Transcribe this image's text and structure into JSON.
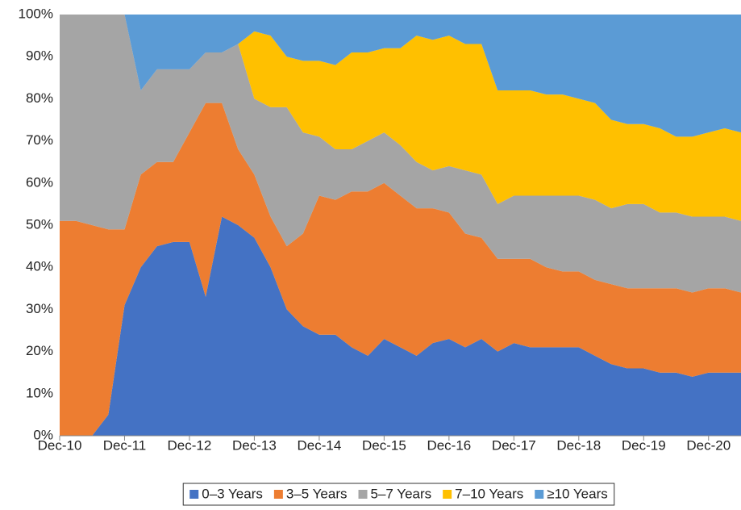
{
  "chart_data": {
    "type": "stacked_area",
    "categories": [
      "Dec-10",
      null,
      null,
      null,
      "Dec-11",
      null,
      null,
      null,
      "Dec-12",
      null,
      null,
      null,
      "Dec-13",
      null,
      null,
      null,
      "Dec-14",
      null,
      null,
      null,
      "Dec-15",
      null,
      null,
      null,
      "Dec-16",
      null,
      null,
      null,
      "Dec-17",
      null,
      null,
      null,
      "Dec-18",
      null,
      null,
      null,
      "Dec-19",
      null,
      null,
      null,
      "Dec-20",
      null,
      null
    ],
    "series": [
      {
        "name": "0–3 Years",
        "color": "#4472c4",
        "values": [
          0,
          0,
          0,
          5,
          31,
          40,
          45,
          46,
          46,
          33,
          52,
          50,
          47,
          40,
          30,
          26,
          24,
          24,
          21,
          19,
          23,
          21,
          19,
          22,
          23,
          21,
          23,
          20,
          22,
          21,
          21,
          21,
          21,
          19,
          17,
          16,
          16,
          15,
          15,
          14,
          15,
          15,
          15
        ]
      },
      {
        "name": "3–5 Years",
        "color": "#ed7d31",
        "values": [
          51,
          51,
          50,
          44,
          18,
          22,
          20,
          19,
          26,
          46,
          27,
          18,
          15,
          12,
          15,
          22,
          33,
          32,
          37,
          39,
          37,
          36,
          35,
          32,
          30,
          27,
          24,
          22,
          20,
          21,
          19,
          18,
          18,
          18,
          19,
          19,
          19,
          20,
          20,
          20,
          20,
          20,
          19
        ]
      },
      {
        "name": "5–7 Years",
        "color": "#a5a5a5",
        "values": [
          49,
          49,
          50,
          51,
          51,
          20,
          22,
          22,
          15,
          12,
          12,
          25,
          18,
          26,
          33,
          24,
          14,
          12,
          10,
          12,
          12,
          12,
          11,
          9,
          11,
          15,
          15,
          13,
          15,
          15,
          17,
          18,
          18,
          19,
          18,
          20,
          20,
          18,
          18,
          18,
          17,
          17,
          17
        ]
      },
      {
        "name": "7–10 Years",
        "color": "#ffc000",
        "values": [
          0,
          0,
          0,
          0,
          0,
          0,
          0,
          0,
          0,
          0,
          0,
          0,
          16,
          17,
          12,
          17,
          18,
          20,
          23,
          21,
          20,
          23,
          30,
          31,
          31,
          30,
          31,
          27,
          25,
          25,
          24,
          24,
          23,
          23,
          21,
          19,
          19,
          20,
          18,
          19,
          20,
          21,
          21
        ]
      },
      {
        "name": "≥10 Years",
        "color": "#5b9bd5",
        "values": [
          0,
          0,
          0,
          0,
          0,
          18,
          13,
          13,
          13,
          9,
          9,
          7,
          4,
          5,
          10,
          11,
          11,
          12,
          9,
          9,
          8,
          8,
          5,
          6,
          5,
          7,
          7,
          18,
          18,
          18,
          19,
          19,
          20,
          21,
          25,
          26,
          26,
          27,
          29,
          29,
          28,
          27,
          28
        ]
      }
    ],
    "ylim": [
      0,
      100
    ],
    "yticks": [
      {
        "value": 0,
        "label": "0%"
      },
      {
        "value": 10,
        "label": "10%"
      },
      {
        "value": 20,
        "label": "20%"
      },
      {
        "value": 30,
        "label": "30%"
      },
      {
        "value": 40,
        "label": "40%"
      },
      {
        "value": 50,
        "label": "50%"
      },
      {
        "value": 60,
        "label": "60%"
      },
      {
        "value": 70,
        "label": "70%"
      },
      {
        "value": 80,
        "label": "80%"
      },
      {
        "value": 90,
        "label": "90%"
      },
      {
        "value": 100,
        "label": "100%"
      }
    ],
    "legend": "bottom"
  }
}
